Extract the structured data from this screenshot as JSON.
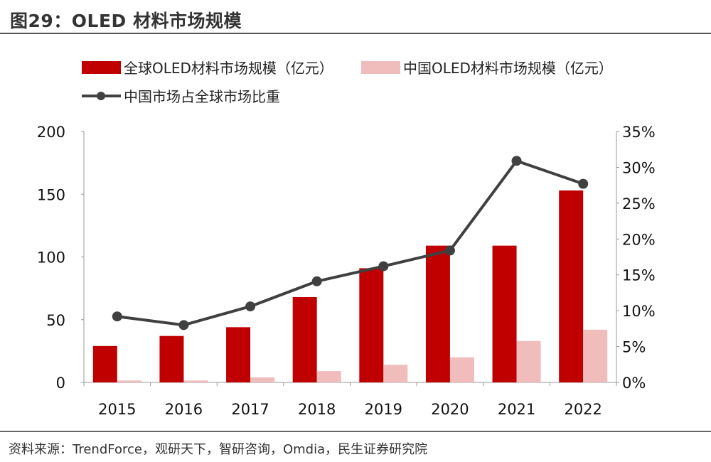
{
  "chart_data": {
    "type": "bar",
    "title": "图29：OLED 材料市场规模",
    "categories": [
      "2015",
      "2016",
      "2017",
      "2018",
      "2019",
      "2020",
      "2021",
      "2022"
    ],
    "series": [
      {
        "name": "全球OLED材料市场规模（亿元）",
        "type": "bar",
        "axis": "left",
        "color": "#c00000",
        "values": [
          29,
          37,
          44,
          68,
          91,
          109,
          109,
          153
        ]
      },
      {
        "name": "中国OLED材料市场规模（亿元）",
        "type": "bar",
        "axis": "left",
        "color": "#f0bcbc",
        "values": [
          1.5,
          1.5,
          4,
          9,
          14,
          20,
          33,
          42
        ]
      },
      {
        "name": "中国市场占全球市场比重",
        "type": "line",
        "axis": "right",
        "color": "#404040",
        "values": [
          9.2,
          8.0,
          10.6,
          14.1,
          16.2,
          18.4,
          30.9,
          27.7
        ]
      }
    ],
    "y_left": {
      "range": [
        0,
        200
      ],
      "ticks": [
        "0",
        "50",
        "100",
        "150",
        "200"
      ]
    },
    "y_right": {
      "range": [
        0,
        35
      ],
      "ticks": [
        "0%",
        "5%",
        "10%",
        "15%",
        "20%",
        "25%",
        "30%",
        "35%"
      ]
    },
    "grid": false,
    "legend_placement": "top"
  },
  "source": "资料来源：TrendForce，观研天下，智研咨询，Omdia，民生证券研究院"
}
